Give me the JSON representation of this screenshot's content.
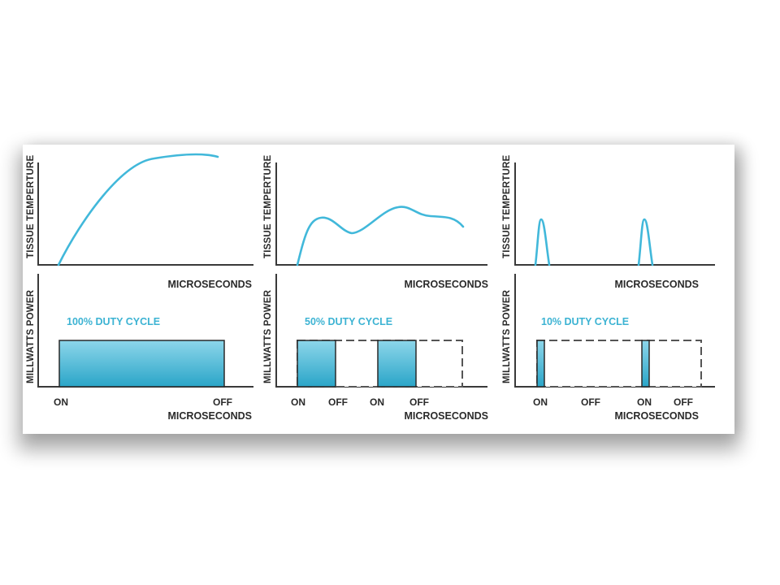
{
  "colors": {
    "accent": "#41b8da",
    "pulse_top": "#8dd6ea",
    "pulse_bottom": "#2aa5c8",
    "axis": "#3a3a3a"
  },
  "panels": [
    {
      "id": "100",
      "temp_axis_label": "TISSUE TEMPERTURE",
      "temp_x_label": "MICROSECONDS",
      "power_axis_label": "MILLWATTS POWER",
      "power_x_label": "MICROSECONDS",
      "duty_label": "100% DUTY CYCLE",
      "ticks": [
        "ON",
        "OFF"
      ]
    },
    {
      "id": "50",
      "temp_axis_label": "TISSUE TEMPERTURE",
      "temp_x_label": "MICROSECONDS",
      "power_axis_label": "MILLWATTS POWER",
      "power_x_label": "MICROSECONDS",
      "duty_label": "50% DUTY CYCLE",
      "ticks": [
        "ON",
        "OFF",
        "ON",
        "OFF"
      ]
    },
    {
      "id": "10",
      "temp_axis_label": "TISSUE TEMPERTURE",
      "temp_x_label": "MICROSECONDS",
      "power_axis_label": "MILLWATTS POWER",
      "power_x_label": "MICROSECONDS",
      "duty_label": "10% DUTY CYCLE",
      "ticks": [
        "ON",
        "OFF",
        "ON",
        "OFF"
      ]
    }
  ]
}
